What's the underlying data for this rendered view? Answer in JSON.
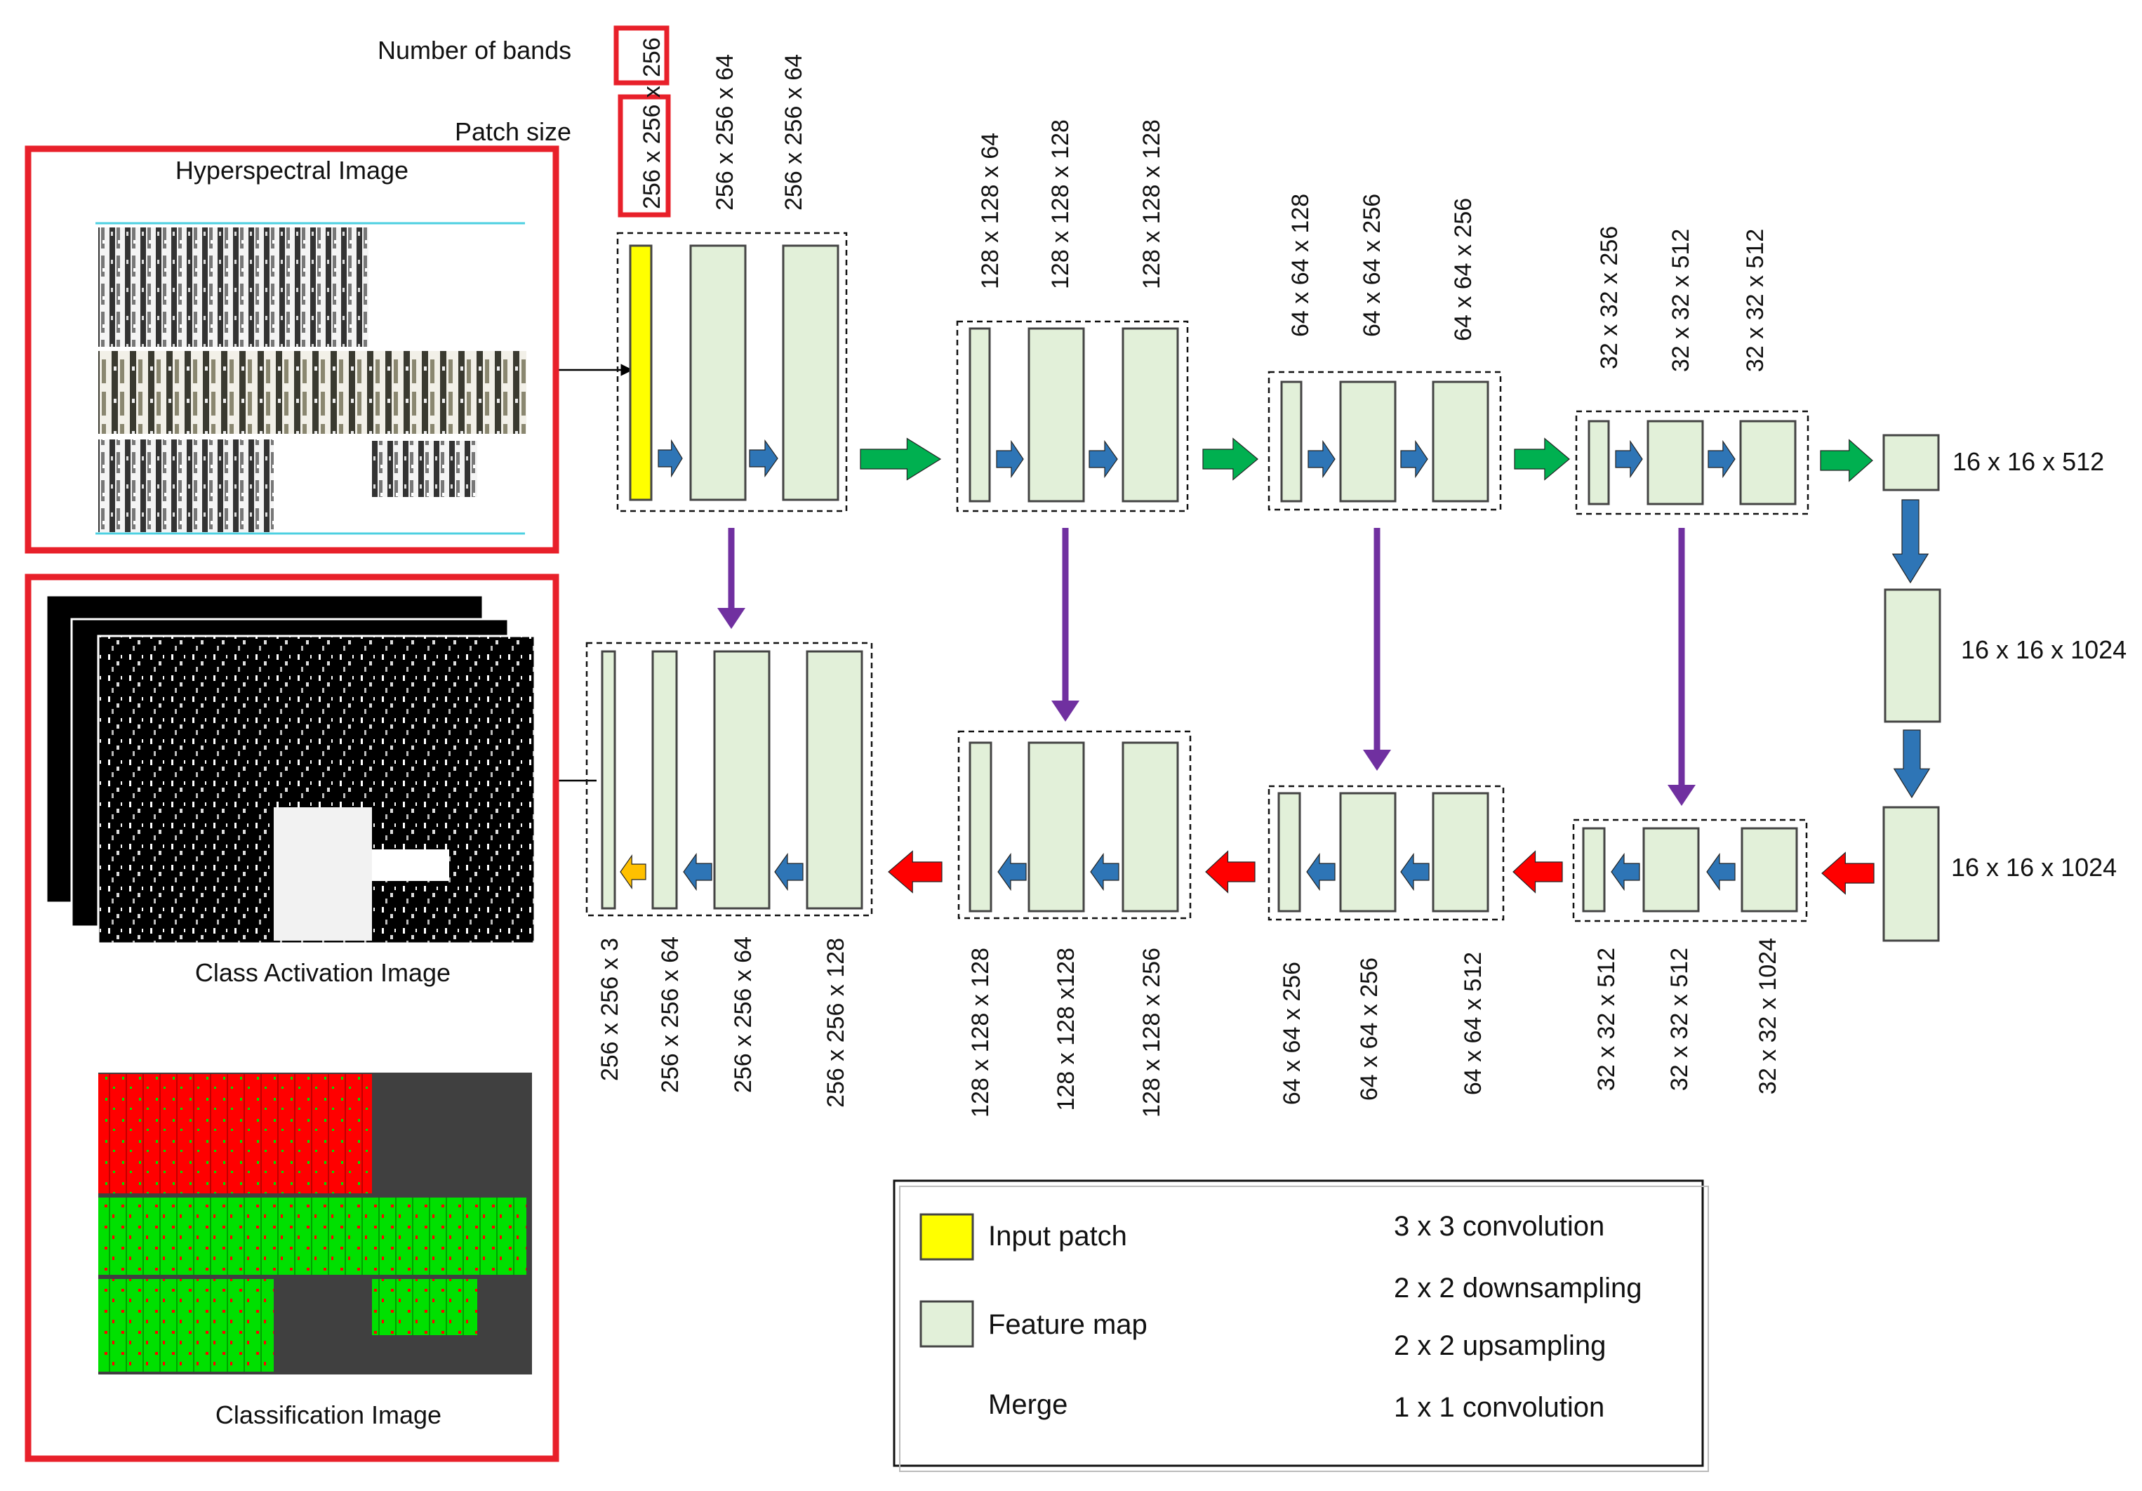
{
  "annotations": {
    "number_of_bands": "Number of bands",
    "patch_size": "Patch size",
    "bands_value": "256",
    "patch_value": "256 x 256 x",
    "enc1_shape": "256 x 256 x 64",
    "enc2_shape": "256 x 256 x 64"
  },
  "panels": {
    "hyperspectral_title": "Hyperspectral Image",
    "class_activation_title": "Class Activation Image",
    "classification_title": "Classification Image"
  },
  "encoder": {
    "block2": [
      "128 x 128 x 64",
      "128 x 128 x 128",
      "128 x 128 x 128"
    ],
    "block3": [
      "64 x 64 x 128",
      "64 x 64 x 256",
      "64 x 64 x 256"
    ],
    "block4": [
      "32 x 32 x 256",
      "32 x 32 x 512",
      "32 x 32 x 512"
    ]
  },
  "bottleneck": [
    "16 x 16 x 512",
    "16 x 16 x 1024",
    "16 x 16 x 1024"
  ],
  "decoder": {
    "block1": [
      "256 x 256 x 3",
      "256 x 256 x 64",
      "256 x 256 x 64",
      "256 x 256 x 128"
    ],
    "block2": [
      "128 x 128 x 128",
      "128 x 128 x128",
      "128 x 128 x 256"
    ],
    "block3": [
      "64 x 64 x 256",
      "64 x 64 x 256",
      "64 x 64 x 512"
    ],
    "block4": [
      "32 x 32 x 512",
      "32 x 32 x 512",
      "32 x 32 x 1024"
    ]
  },
  "legend": {
    "input_patch": "Input patch",
    "feature_map": "Feature map",
    "merge": "Merge",
    "conv3": "3 x 3 convolution",
    "down": "2 x 2 downsampling",
    "up": "2 x 2 upsampling",
    "conv1": "1 x 1 convolution"
  },
  "colors": {
    "input_patch": "#ffff00",
    "feature_map": "#e2f0d9",
    "conv3": "#2e75b6",
    "down": "#00b050",
    "up": "#ff0000",
    "conv1": "#ffc000",
    "merge": "#7030a0",
    "highlight_box": "#e8202a",
    "class_red": "#ff0000",
    "class_green": "#00e000",
    "class_background": "#404040"
  }
}
